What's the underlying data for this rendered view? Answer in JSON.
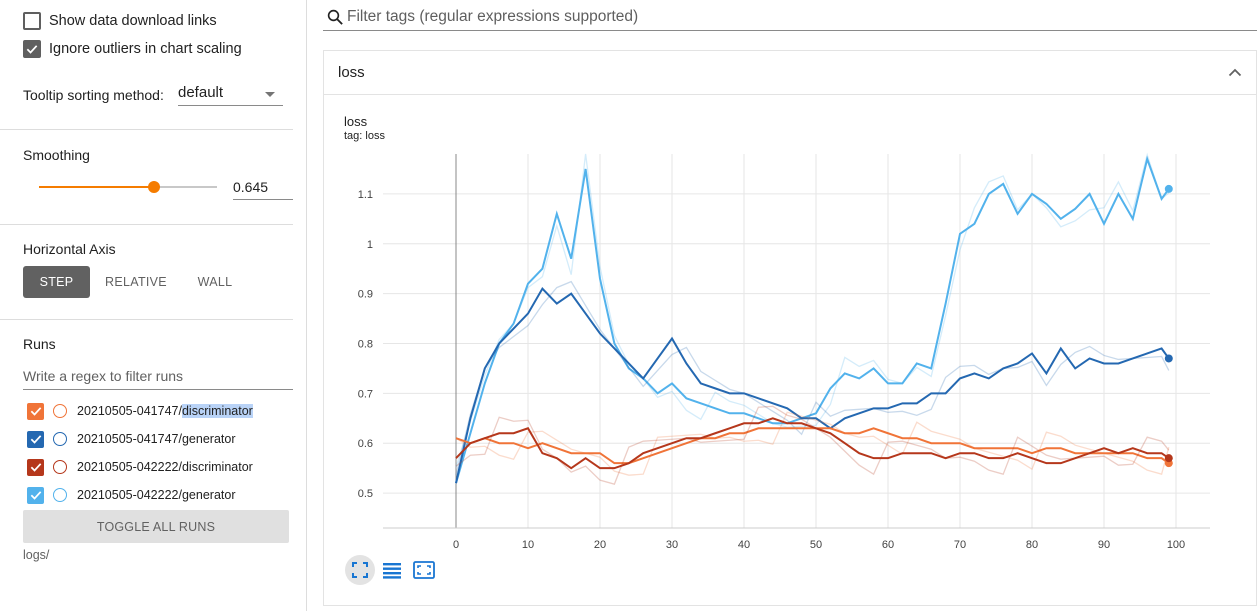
{
  "sidebar": {
    "show_download_links": {
      "label": "Show data download links",
      "checked": false
    },
    "ignore_outliers": {
      "label": "Ignore outliers in chart scaling",
      "checked": true
    },
    "tooltip_sorting": {
      "label": "Tooltip sorting method:",
      "value": "default"
    },
    "smoothing": {
      "heading": "Smoothing",
      "value": "0.645",
      "fraction": 0.645
    },
    "horizontal_axis": {
      "heading": "Horizontal Axis",
      "options": [
        "STEP",
        "RELATIVE",
        "WALL"
      ],
      "selected": "STEP"
    },
    "runs": {
      "heading": "Runs",
      "filter_placeholder": "Write a regex to filter runs",
      "items": [
        {
          "prefix": "20210505-041747/",
          "suffix": "discriminator",
          "color": "#f07438",
          "checked": true,
          "highlighted": true
        },
        {
          "prefix": "20210505-041747/",
          "suffix": "generator",
          "color": "#2468b1",
          "checked": true,
          "highlighted": false
        },
        {
          "prefix": "20210505-042222/",
          "suffix": "discriminator",
          "color": "#b5371b",
          "checked": true,
          "highlighted": false
        },
        {
          "prefix": "20210505-042222/",
          "suffix": "generator",
          "color": "#52b2ec",
          "checked": true,
          "highlighted": false
        }
      ],
      "toggle_all_label": "TOGGLE ALL RUNS",
      "logdir": "logs/"
    }
  },
  "main": {
    "tag_filter_placeholder": "Filter tags (regular expressions supported)",
    "card_title": "loss",
    "chart_title": "loss",
    "chart_subtitle": "tag: loss"
  },
  "icons": {
    "search": "search-icon",
    "collapse": "chevron-up-icon",
    "fit": "fit-to-data-icon",
    "toggle_log": "lines-icon",
    "expand": "expand-icon"
  },
  "chart_data": {
    "type": "line",
    "title": "loss",
    "xlabel": "",
    "ylabel": "",
    "xlim": [
      0,
      100
    ],
    "ylim": [
      0.43,
      1.18
    ],
    "xticks": [
      "0",
      "10",
      "20",
      "30",
      "40",
      "50",
      "60",
      "70",
      "80",
      "90",
      "100"
    ],
    "yticks": [
      "0.5",
      "0.6",
      "0.7",
      "0.8",
      "0.9",
      "1",
      "1.1"
    ],
    "grid": true,
    "smoothing": 0.645,
    "series": [
      {
        "name": "20210505-042222/generator",
        "color": "#52b2ec",
        "x": [
          0,
          2,
          4,
          6,
          8,
          10,
          12,
          14,
          16,
          18,
          20,
          22,
          24,
          26,
          28,
          30,
          32,
          34,
          36,
          38,
          40,
          42,
          44,
          46,
          48,
          50,
          52,
          54,
          56,
          58,
          60,
          62,
          64,
          66,
          68,
          70,
          72,
          74,
          76,
          78,
          80,
          82,
          84,
          86,
          88,
          90,
          92,
          94,
          96,
          98,
          99
        ],
        "y": [
          0.52,
          0.62,
          0.72,
          0.8,
          0.84,
          0.92,
          0.95,
          1.06,
          0.97,
          1.15,
          0.93,
          0.8,
          0.75,
          0.73,
          0.7,
          0.72,
          0.69,
          0.68,
          0.67,
          0.66,
          0.66,
          0.65,
          0.64,
          0.64,
          0.65,
          0.66,
          0.71,
          0.74,
          0.73,
          0.75,
          0.72,
          0.72,
          0.76,
          0.75,
          0.88,
          1.02,
          1.04,
          1.1,
          1.12,
          1.06,
          1.1,
          1.08,
          1.05,
          1.07,
          1.1,
          1.04,
          1.1,
          1.05,
          1.17,
          1.09,
          1.11
        ]
      },
      {
        "name": "20210505-041747/generator",
        "color": "#2468b1",
        "x": [
          0,
          2,
          4,
          6,
          8,
          10,
          12,
          14,
          16,
          18,
          20,
          22,
          24,
          26,
          28,
          30,
          32,
          34,
          36,
          38,
          40,
          42,
          44,
          46,
          48,
          50,
          52,
          54,
          56,
          58,
          60,
          62,
          64,
          66,
          68,
          70,
          72,
          74,
          76,
          78,
          80,
          82,
          84,
          86,
          88,
          90,
          92,
          94,
          96,
          98,
          99
        ],
        "y": [
          0.52,
          0.65,
          0.75,
          0.8,
          0.83,
          0.86,
          0.91,
          0.88,
          0.9,
          0.86,
          0.82,
          0.79,
          0.76,
          0.73,
          0.77,
          0.81,
          0.76,
          0.72,
          0.71,
          0.7,
          0.7,
          0.69,
          0.68,
          0.67,
          0.65,
          0.65,
          0.63,
          0.65,
          0.66,
          0.67,
          0.67,
          0.68,
          0.68,
          0.7,
          0.7,
          0.73,
          0.74,
          0.73,
          0.75,
          0.76,
          0.78,
          0.74,
          0.79,
          0.75,
          0.77,
          0.76,
          0.76,
          0.77,
          0.78,
          0.79,
          0.77
        ]
      },
      {
        "name": "20210505-041747/discriminator",
        "color": "#f07438",
        "x": [
          0,
          2,
          4,
          6,
          8,
          10,
          12,
          14,
          16,
          18,
          20,
          22,
          24,
          26,
          28,
          30,
          32,
          34,
          36,
          38,
          40,
          42,
          44,
          46,
          48,
          50,
          52,
          54,
          56,
          58,
          60,
          62,
          64,
          66,
          68,
          70,
          72,
          74,
          76,
          78,
          80,
          82,
          84,
          86,
          88,
          90,
          92,
          94,
          96,
          98,
          99
        ],
        "y": [
          0.61,
          0.6,
          0.61,
          0.6,
          0.6,
          0.59,
          0.6,
          0.59,
          0.58,
          0.58,
          0.58,
          0.56,
          0.56,
          0.57,
          0.58,
          0.59,
          0.6,
          0.61,
          0.61,
          0.62,
          0.62,
          0.63,
          0.63,
          0.63,
          0.63,
          0.63,
          0.63,
          0.62,
          0.62,
          0.63,
          0.62,
          0.61,
          0.61,
          0.6,
          0.6,
          0.6,
          0.59,
          0.59,
          0.59,
          0.59,
          0.58,
          0.59,
          0.59,
          0.58,
          0.58,
          0.58,
          0.58,
          0.58,
          0.57,
          0.57,
          0.56
        ]
      },
      {
        "name": "20210505-042222/discriminator",
        "color": "#b5371b",
        "x": [
          0,
          2,
          4,
          6,
          8,
          10,
          12,
          14,
          16,
          18,
          20,
          22,
          24,
          26,
          28,
          30,
          32,
          34,
          36,
          38,
          40,
          42,
          44,
          46,
          48,
          50,
          52,
          54,
          56,
          58,
          60,
          62,
          64,
          66,
          68,
          70,
          72,
          74,
          76,
          78,
          80,
          82,
          84,
          86,
          88,
          90,
          92,
          94,
          96,
          98,
          99
        ],
        "y": [
          0.57,
          0.6,
          0.61,
          0.62,
          0.62,
          0.63,
          0.58,
          0.57,
          0.55,
          0.57,
          0.55,
          0.55,
          0.56,
          0.58,
          0.59,
          0.6,
          0.61,
          0.61,
          0.62,
          0.63,
          0.64,
          0.64,
          0.65,
          0.64,
          0.64,
          0.63,
          0.62,
          0.6,
          0.58,
          0.57,
          0.57,
          0.58,
          0.58,
          0.58,
          0.57,
          0.58,
          0.58,
          0.57,
          0.57,
          0.58,
          0.57,
          0.56,
          0.56,
          0.57,
          0.58,
          0.59,
          0.58,
          0.59,
          0.58,
          0.58,
          0.57
        ]
      }
    ]
  }
}
